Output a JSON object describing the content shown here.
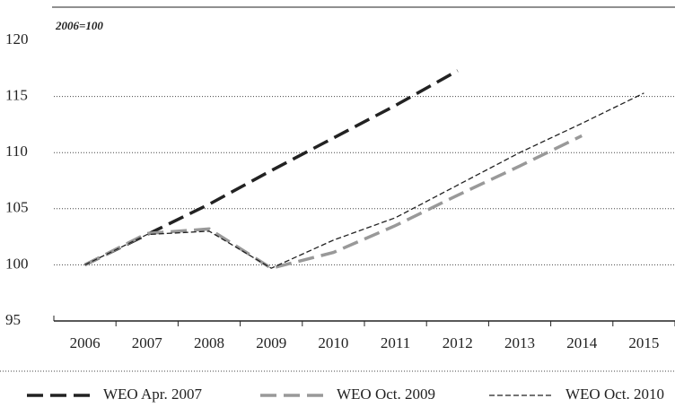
{
  "chart_data": {
    "type": "line",
    "annotation": "2006=100",
    "categories": [
      "2006",
      "2007",
      "2008",
      "2009",
      "2010",
      "2011",
      "2012",
      "2013",
      "2014",
      "2015"
    ],
    "series": [
      {
        "name": "WEO Apr. 2007",
        "color": "#222222",
        "values": [
          100,
          102.7,
          105.4,
          108.4,
          111.3,
          114.2,
          117.3,
          null,
          null,
          null
        ]
      },
      {
        "name": "WEO Oct. 2009",
        "color": "#999999",
        "values": [
          100,
          102.8,
          103.2,
          99.7,
          101.1,
          103.5,
          106.2,
          108.8,
          111.5,
          null
        ]
      },
      {
        "name": "WEO Oct. 2010",
        "color": "#222222",
        "values": [
          100,
          102.7,
          103.0,
          99.7,
          102.2,
          104.2,
          107.1,
          110.0,
          112.6,
          115.3
        ]
      }
    ],
    "ylim": [
      95,
      120
    ],
    "yticks": [
      95,
      100,
      105,
      110,
      115,
      120
    ],
    "grid": true
  }
}
